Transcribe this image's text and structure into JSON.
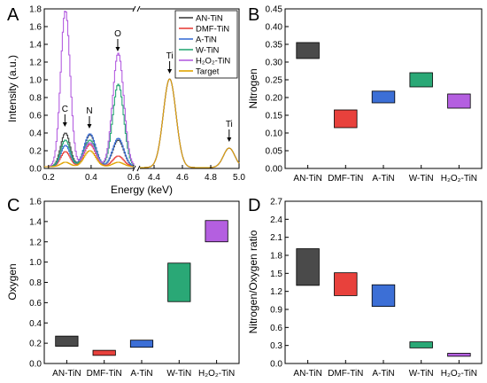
{
  "panel_labels": [
    "A",
    "B",
    "C",
    "D"
  ],
  "chart_data": [
    {
      "panel": "A",
      "type": "line",
      "xlabel": "Energy (keV)",
      "ylabel": "Intensity (a.u.)",
      "ylim": [
        0,
        1.8
      ],
      "y_ticks": [
        "0.0",
        "0.2",
        "0.4",
        "0.6",
        "0.8",
        "1.0",
        "1.2",
        "1.4",
        "1.6",
        "1.8"
      ],
      "x_segments": [
        {
          "xlim": [
            0.18,
            0.6
          ],
          "ticks": [
            "0.2",
            "0.4",
            "0.6"
          ],
          "tick_values": [
            0.2,
            0.4,
            0.6
          ]
        },
        {
          "xlim": [
            4.3,
            5.0
          ],
          "ticks": [
            "4.4",
            "4.6",
            "4.8",
            "5.0"
          ],
          "tick_values": [
            4.4,
            4.6,
            4.8,
            5.0
          ]
        }
      ],
      "legend": "top-right",
      "annotations": [
        {
          "text": "C",
          "x": 0.277,
          "y": 0.4,
          "segment": 0
        },
        {
          "text": "N",
          "x": 0.392,
          "y": 0.38,
          "segment": 0
        },
        {
          "text": "O",
          "x": 0.525,
          "y": 1.25,
          "segment": 0
        },
        {
          "text": "Ti",
          "x": 4.51,
          "y": 1.0,
          "segment": 1
        },
        {
          "text": "Ti",
          "x": 4.93,
          "y": 0.23,
          "segment": 1
        }
      ],
      "series": [
        {
          "name": "AN-TiN",
          "color": "#404040",
          "c": 0.38,
          "n": 0.36,
          "o": 0.3,
          "ti1": 1.0,
          "ti2": 0.22
        },
        {
          "name": "DMF-TiN",
          "color": "#e8413c",
          "c": 0.17,
          "n": 0.25,
          "o": 0.12,
          "ti1": 1.0,
          "ti2": 0.22
        },
        {
          "name": "A-TiN",
          "color": "#3c6fd6",
          "c": 0.24,
          "n": 0.37,
          "o": 0.32,
          "ti1": 1.0,
          "ti2": 0.22
        },
        {
          "name": "W-TiN",
          "color": "#2aa876",
          "c": 0.3,
          "n": 0.3,
          "o": 0.93,
          "ti1": 1.0,
          "ti2": 0.22
        },
        {
          "name": "H₂O₂-TiN",
          "color": "#b45fe0",
          "c": 1.76,
          "n": 0.27,
          "o": 1.28,
          "ti1": 1.0,
          "ti2": 0.22
        },
        {
          "name": "Target",
          "color": "#e0a400",
          "c": 0.05,
          "n": 0.18,
          "o": 0.05,
          "ti1": 1.0,
          "ti2": 0.22
        }
      ]
    },
    {
      "panel": "B",
      "type": "bar",
      "ylabel": "Nitrogen",
      "ylim": [
        0,
        0.45
      ],
      "y_ticks": [
        "0.00",
        "0.05",
        "0.10",
        "0.15",
        "0.20",
        "0.25",
        "0.30",
        "0.35",
        "0.40",
        "0.45"
      ],
      "categories": [
        "AN-TiN",
        "DMF-TiN",
        "A-TiN",
        "W-TiN",
        "H₂O₂-TiN"
      ],
      "ranges": [
        [
          0.31,
          0.355
        ],
        [
          0.115,
          0.165
        ],
        [
          0.185,
          0.218
        ],
        [
          0.23,
          0.27
        ],
        [
          0.17,
          0.21
        ]
      ],
      "colors": [
        "#4a4a4a",
        "#e8413c",
        "#3c6fd6",
        "#2aa876",
        "#b45fe0"
      ]
    },
    {
      "panel": "C",
      "type": "bar",
      "ylabel": "Oxygen",
      "ylim": [
        0,
        1.6
      ],
      "y_ticks": [
        "0.0",
        "0.2",
        "0.4",
        "0.6",
        "0.8",
        "1.0",
        "1.2",
        "1.4",
        "1.6"
      ],
      "categories": [
        "AN-TiN",
        "DMF-TiN",
        "A-TiN",
        "W-TiN",
        "H₂O₂-TiN"
      ],
      "ranges": [
        [
          0.17,
          0.27
        ],
        [
          0.08,
          0.13
        ],
        [
          0.16,
          0.23
        ],
        [
          0.61,
          0.99
        ],
        [
          1.2,
          1.41
        ]
      ],
      "colors": [
        "#4a4a4a",
        "#e8413c",
        "#3c6fd6",
        "#2aa876",
        "#b45fe0"
      ]
    },
    {
      "panel": "D",
      "type": "bar",
      "ylabel": "Nitrogen/Oxygen ratio",
      "ylim": [
        0,
        2.7
      ],
      "y_ticks": [
        "0.0",
        "0.3",
        "0.6",
        "0.9",
        "1.2",
        "1.5",
        "1.8",
        "2.1",
        "2.4",
        "2.7"
      ],
      "categories": [
        "AN-TiN",
        "DMF-TiN",
        "A-TiN",
        "W-TiN",
        "H₂O₂-TiN"
      ],
      "ranges": [
        [
          1.3,
          1.91
        ],
        [
          1.13,
          1.51
        ],
        [
          0.95,
          1.31
        ],
        [
          0.26,
          0.36
        ],
        [
          0.12,
          0.17
        ]
      ],
      "colors": [
        "#4a4a4a",
        "#e8413c",
        "#3c6fd6",
        "#2aa876",
        "#b45fe0"
      ]
    }
  ]
}
